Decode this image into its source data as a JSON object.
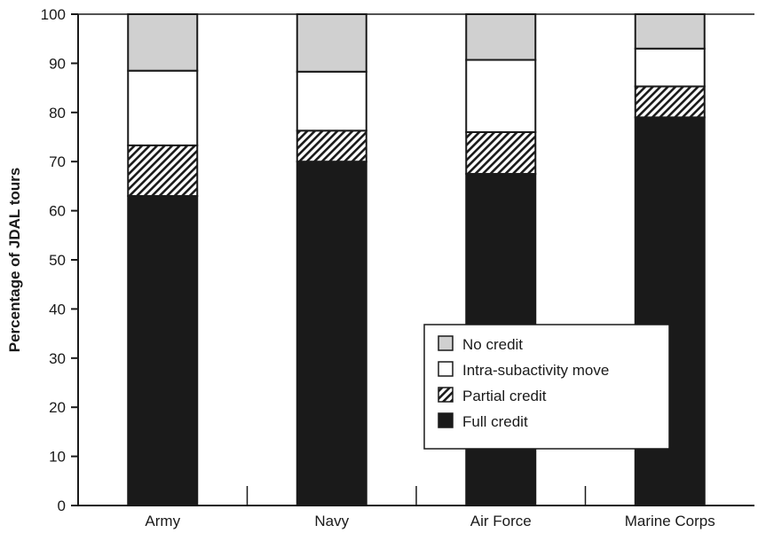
{
  "chart_data": {
    "type": "bar",
    "stacked": true,
    "categories": [
      "Army",
      "Navy",
      "Air Force",
      "Marine Corps"
    ],
    "series": [
      {
        "name": "Full credit",
        "values": [
          63,
          70,
          67.5,
          79
        ],
        "color": "#1a1a1a",
        "pattern": "solid"
      },
      {
        "name": "Partial credit",
        "values": [
          10.3,
          6.3,
          8.5,
          6.3
        ],
        "color": "#1a1a1a",
        "pattern": "hatch"
      },
      {
        "name": "Intra-subactivity move",
        "values": [
          15.2,
          12,
          14.7,
          7.7
        ],
        "color": "#ffffff",
        "pattern": "solid"
      },
      {
        "name": "No credit",
        "values": [
          11.5,
          11.7,
          9.3,
          7
        ],
        "color": "#d0d0d0",
        "pattern": "solid"
      }
    ],
    "legend_order": [
      "No credit",
      "Intra-subactivity move",
      "Partial credit",
      "Full credit"
    ],
    "ylabel": "Percentage of JDAL tours",
    "xlabel": "",
    "ylim": [
      0,
      100
    ],
    "yticks": [
      0,
      10,
      20,
      30,
      40,
      50,
      60,
      70,
      80,
      90,
      100
    ],
    "grid": false,
    "legend_position": "lower-right"
  }
}
